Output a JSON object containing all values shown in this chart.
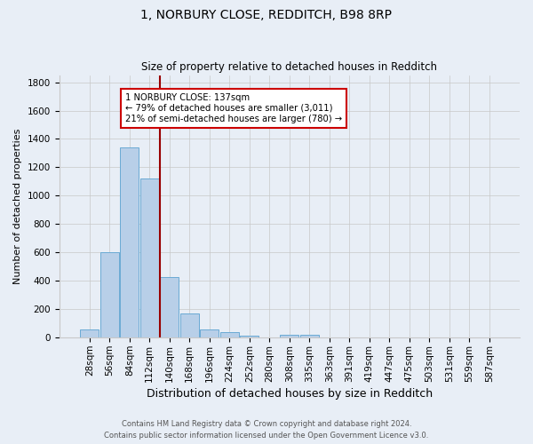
{
  "title": "1, NORBURY CLOSE, REDDITCH, B98 8RP",
  "subtitle": "Size of property relative to detached houses in Redditch",
  "xlabel": "Distribution of detached houses by size in Redditch",
  "ylabel": "Number of detached properties",
  "footer_line1": "Contains HM Land Registry data © Crown copyright and database right 2024.",
  "footer_line2": "Contains public sector information licensed under the Open Government Licence v3.0.",
  "bin_labels": [
    "28sqm",
    "56sqm",
    "84sqm",
    "112sqm",
    "140sqm",
    "168sqm",
    "196sqm",
    "224sqm",
    "252sqm",
    "280sqm",
    "308sqm",
    "335sqm",
    "363sqm",
    "391sqm",
    "419sqm",
    "447sqm",
    "475sqm",
    "503sqm",
    "531sqm",
    "559sqm",
    "587sqm"
  ],
  "bar_values": [
    60,
    600,
    1340,
    1120,
    425,
    170,
    60,
    40,
    15,
    0,
    20,
    20,
    0,
    0,
    0,
    0,
    0,
    0,
    0,
    0,
    0
  ],
  "bar_color": "#b8cfe8",
  "bar_edge_color": "#6aaad4",
  "background_color": "#e8eef6",
  "grid_color": "#c8c8c8",
  "vline_color": "#990000",
  "annotation_text": "1 NORBURY CLOSE: 137sqm\n← 79% of detached houses are smaller (3,011)\n21% of semi-detached houses are larger (780) →",
  "annotation_box_color": "white",
  "annotation_box_edge": "#cc0000",
  "ylim": [
    0,
    1850
  ],
  "yticks": [
    0,
    200,
    400,
    600,
    800,
    1000,
    1200,
    1400,
    1600,
    1800
  ],
  "title_fontsize": 10,
  "subtitle_fontsize": 8.5,
  "ylabel_fontsize": 8,
  "xlabel_fontsize": 9,
  "tick_fontsize": 7.5
}
